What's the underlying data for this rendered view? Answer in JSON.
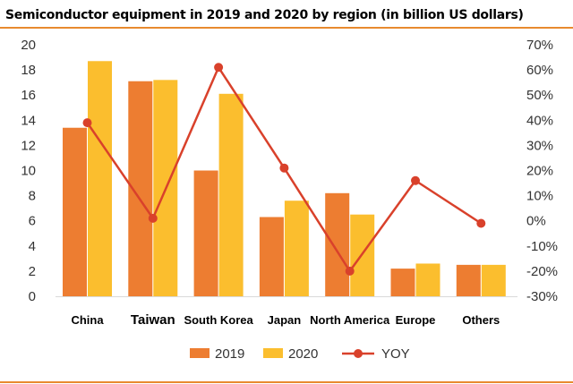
{
  "chart_data": {
    "type": "bar",
    "title": "Semiconductor equipment in 2019 and 2020 by region (in billion US dollars)",
    "categories": [
      "China",
      "Taiwan",
      "South Korea",
      "Japan",
      "North America",
      "Europe",
      "Others"
    ],
    "series": [
      {
        "name": "2019",
        "type": "bar",
        "axis": "left",
        "color": "#ed7d31",
        "values": [
          13.4,
          17.1,
          10.0,
          6.3,
          8.2,
          2.2,
          2.5
        ]
      },
      {
        "name": "2020",
        "type": "bar",
        "axis": "left",
        "color": "#fbbe2e",
        "values": [
          18.7,
          17.2,
          16.1,
          7.6,
          6.5,
          2.6,
          2.5
        ]
      },
      {
        "name": "YOY",
        "type": "line",
        "axis": "right",
        "unit": "%",
        "color": "#d9412b",
        "values": [
          39,
          1,
          61,
          21,
          -20,
          16,
          -1
        ]
      }
    ],
    "y_left": {
      "min": 0,
      "max": 20,
      "step": 2,
      "ticks": [
        "0",
        "2",
        "4",
        "6",
        "8",
        "10",
        "12",
        "14",
        "16",
        "18",
        "20"
      ]
    },
    "y_right": {
      "min": -30,
      "max": 70,
      "step": 10,
      "ticks": [
        "-30%",
        "-20%",
        "-10%",
        "0%",
        "10%",
        "20%",
        "30%",
        "40%",
        "50%",
        "60%",
        "70%"
      ]
    },
    "legend": {
      "position": "bottom",
      "items": [
        "2019",
        "2020",
        "YOY"
      ]
    },
    "grid": false
  }
}
